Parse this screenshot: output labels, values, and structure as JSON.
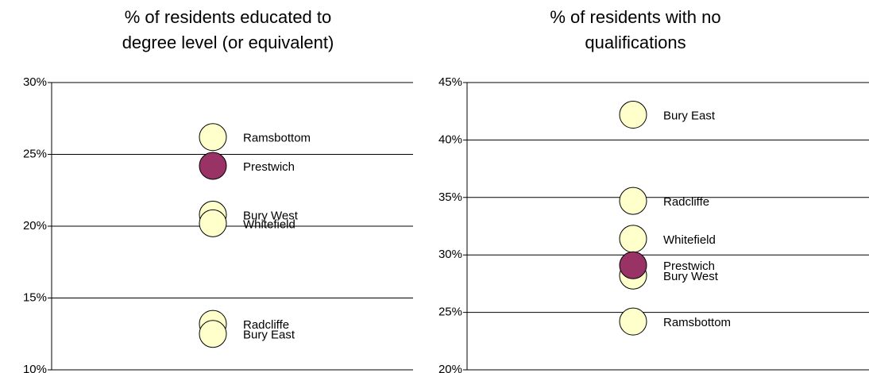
{
  "chart_data": [
    {
      "type": "scatter",
      "title": "% of residents educated to degree level (or equivalent)",
      "categories": [
        "Ramsbottom",
        "Prestwich",
        "Bury West",
        "Whitefield",
        "Radcliffe",
        "Bury East"
      ],
      "values": [
        26.2,
        24.2,
        20.8,
        20.2,
        13.2,
        12.5
      ],
      "colors": [
        "#ffffcc",
        "#993366",
        "#ffffcc",
        "#ffffcc",
        "#ffffcc",
        "#ffffcc"
      ],
      "ylim": [
        10,
        30
      ],
      "yticks": [
        {
          "value": 10,
          "label": "10%"
        },
        {
          "value": 15,
          "label": "15%"
        },
        {
          "value": 20,
          "label": "20%"
        },
        {
          "value": 25,
          "label": "25%"
        },
        {
          "value": 30,
          "label": "30%"
        }
      ],
      "grid": true
    },
    {
      "type": "scatter",
      "title": "% of residents with no qualifications",
      "categories": [
        "Bury East",
        "Radcliffe",
        "Whitefield",
        "Bury West",
        "Prestwich",
        "Ramsbottom"
      ],
      "values": [
        42.2,
        34.7,
        31.4,
        28.2,
        29.1,
        24.2
      ],
      "colors": [
        "#ffffcc",
        "#ffffcc",
        "#ffffcc",
        "#ffffcc",
        "#993366",
        "#ffffcc"
      ],
      "ylim": [
        20,
        45
      ],
      "yticks": [
        {
          "value": 20,
          "label": "20%"
        },
        {
          "value": 25,
          "label": "25%"
        },
        {
          "value": 30,
          "label": "30%"
        },
        {
          "value": 35,
          "label": "35%"
        },
        {
          "value": 40,
          "label": "40%"
        },
        {
          "value": 45,
          "label": "45%"
        }
      ],
      "grid": true
    }
  ]
}
